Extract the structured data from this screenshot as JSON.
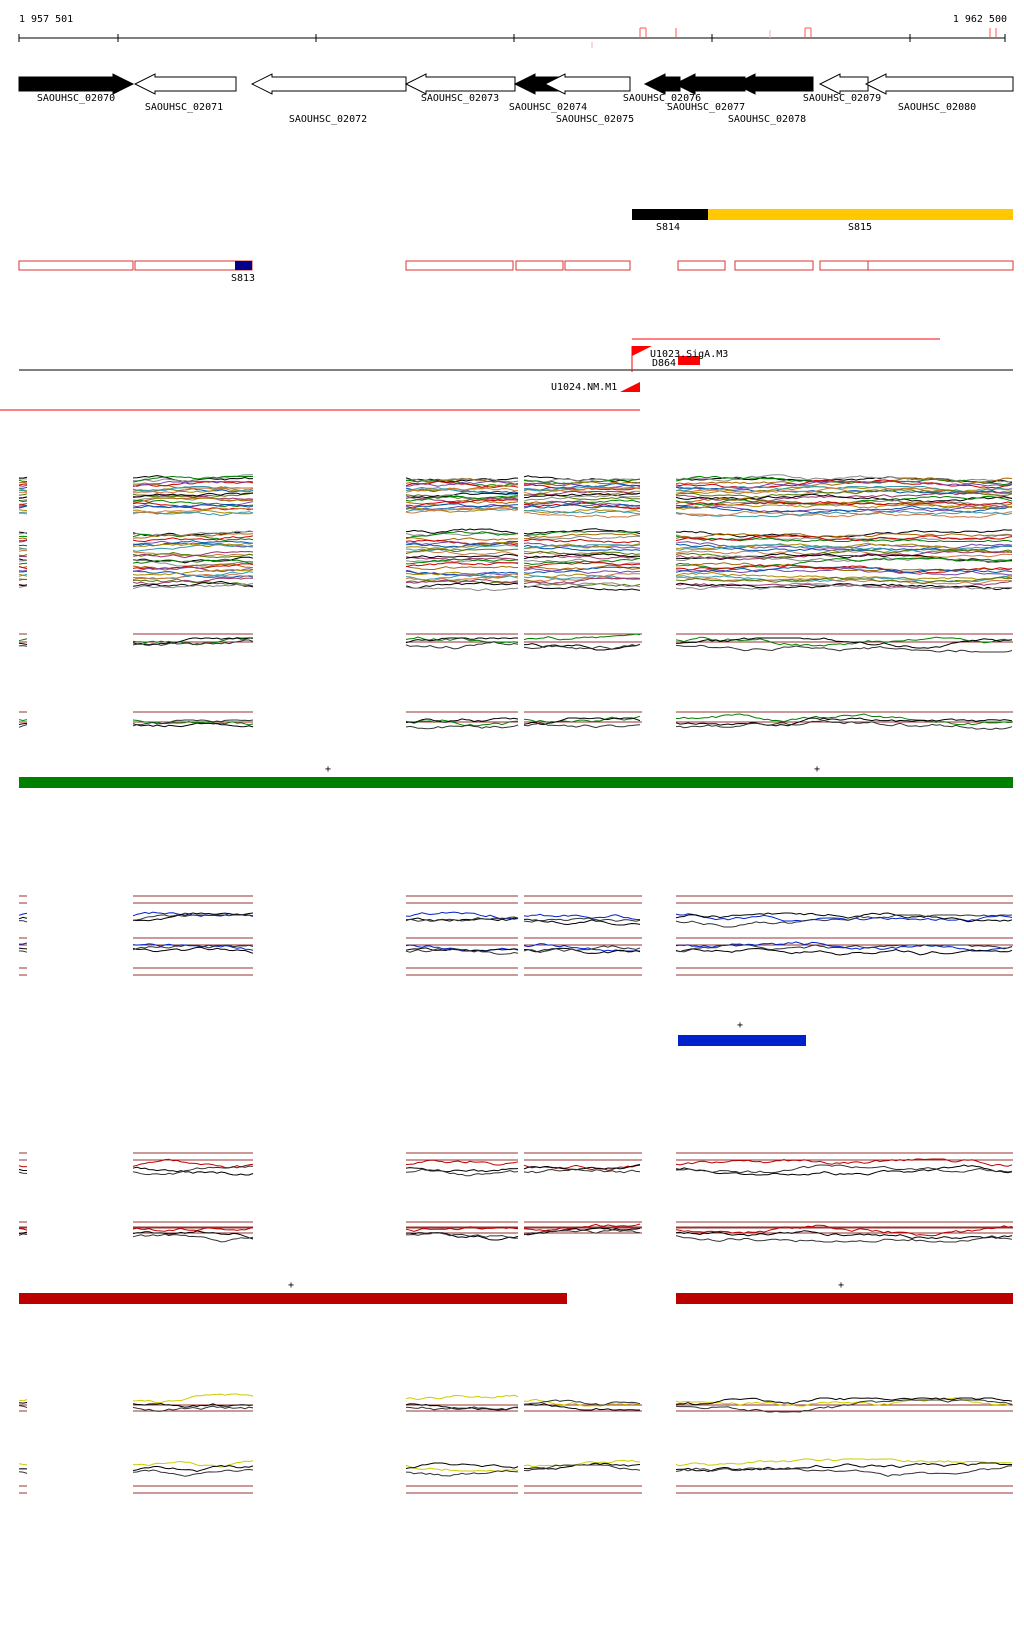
{
  "ruler": {
    "start_label": "1 957 501",
    "end_label": "1 962 500"
  },
  "genes": [
    {
      "name": "SAOUHSC_02070",
      "strand": "+",
      "filled": true
    },
    {
      "name": "SAOUHSC_02071",
      "strand": "-",
      "filled": false
    },
    {
      "name": "SAOUHSC_02072",
      "strand": "-",
      "filled": false
    },
    {
      "name": "SAOUHSC_02073",
      "strand": "-",
      "filled": false
    },
    {
      "name": "SAOUHSC_02074",
      "strand": "-",
      "filled": true
    },
    {
      "name": "SAOUHSC_02075",
      "strand": "-",
      "filled": false
    },
    {
      "name": "SAOUHSC_02076",
      "strand": "-",
      "filled": true
    },
    {
      "name": "SAOUHSC_02077",
      "strand": "-",
      "filled": true
    },
    {
      "name": "SAOUHSC_02078",
      "strand": "-",
      "filled": true
    },
    {
      "name": "SAOUHSC_02079",
      "strand": "-",
      "filled": false
    },
    {
      "name": "SAOUHSC_02080",
      "strand": "-",
      "filled": false
    }
  ],
  "segments": [
    {
      "name": "S813",
      "color": "#00008b"
    },
    {
      "name": "S814",
      "color": "#000000"
    },
    {
      "name": "S815",
      "color": "#ffc800"
    }
  ],
  "features": [
    {
      "name": "U1023.SigA.M3",
      "color": "#ff0000"
    },
    {
      "name": "D864",
      "color": "#ff0000"
    },
    {
      "name": "U1024.NM.M1",
      "color": "#ff0000"
    }
  ],
  "strand_marks": {
    "plus": "+"
  },
  "colors": {
    "green": "#008000",
    "blue": "#0022cc",
    "red": "#bb0000",
    "yellow": "#cccc00",
    "outline_red": "#dd3333"
  }
}
